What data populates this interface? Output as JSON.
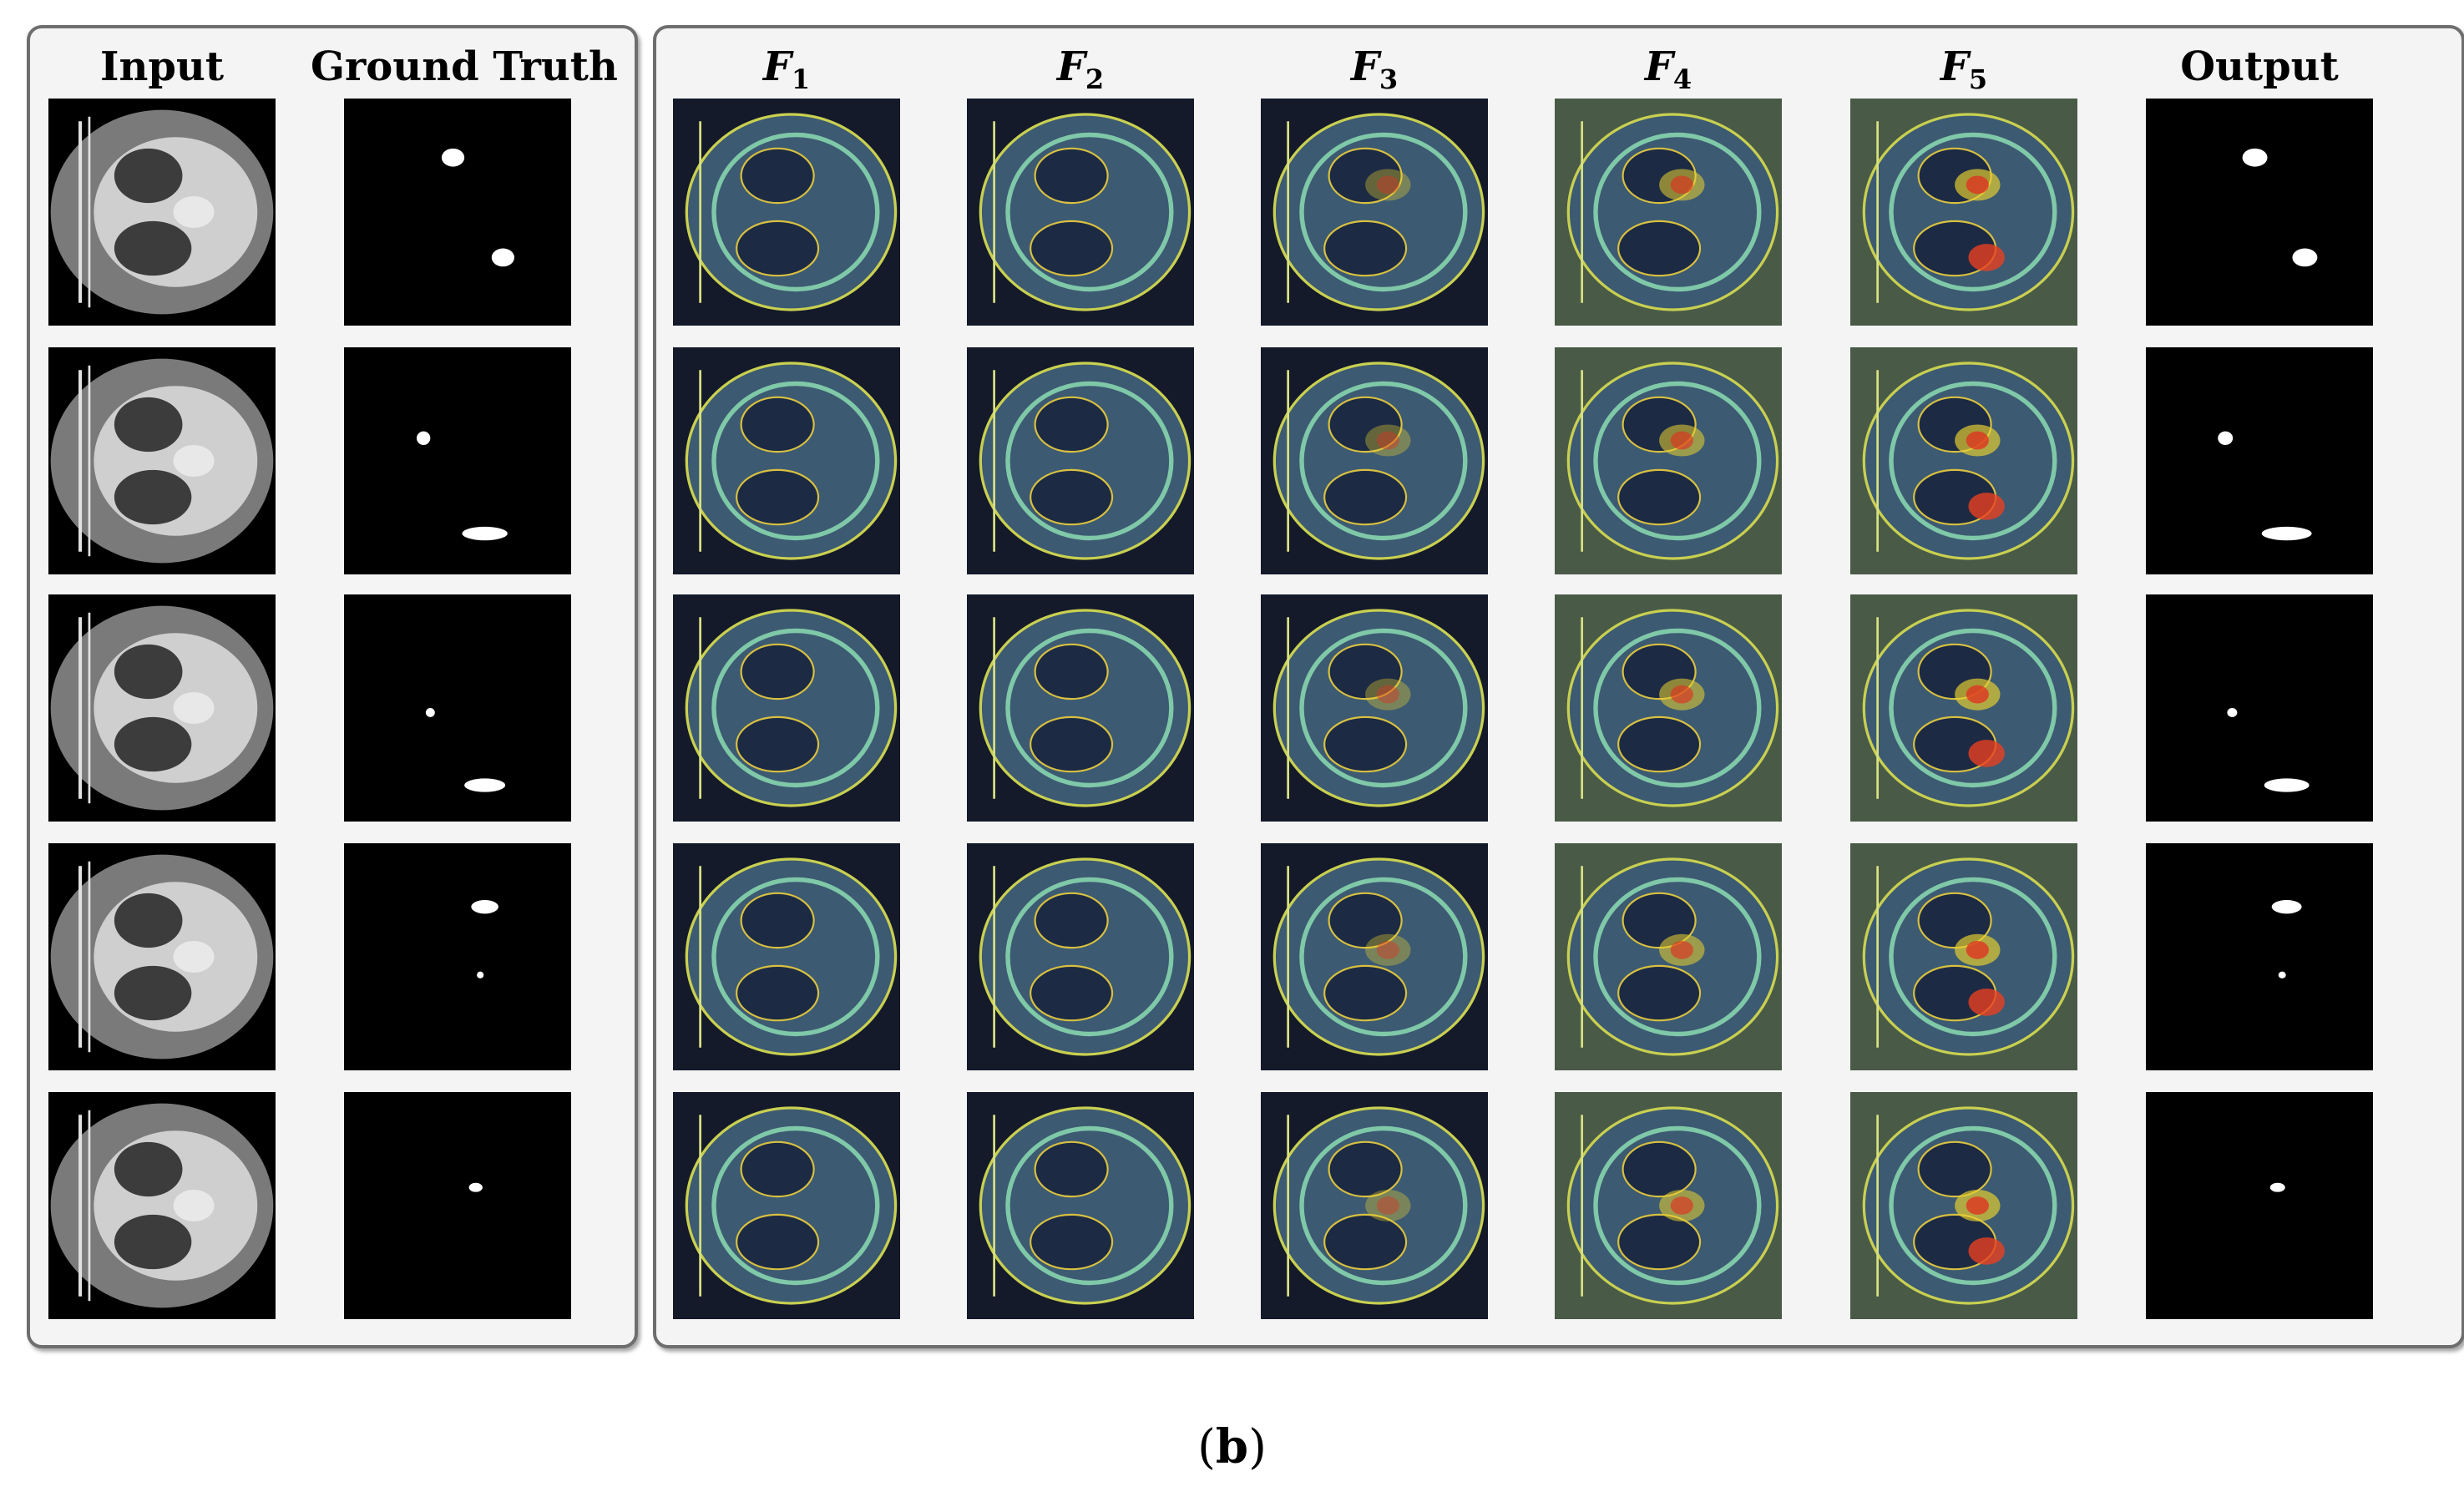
{
  "columns": [
    {
      "id": "input",
      "label": "Input",
      "kind": "ct"
    },
    {
      "id": "gt",
      "label": "Ground  Truth",
      "kind": "mask"
    },
    {
      "id": "f1",
      "label": "F",
      "sub": "1",
      "kind": "feat",
      "heat": 0.15
    },
    {
      "id": "f2",
      "label": "F",
      "sub": "2",
      "kind": "feat",
      "heat": 0.25
    },
    {
      "id": "f3",
      "label": "F",
      "sub": "3",
      "kind": "feat",
      "heat": 0.45
    },
    {
      "id": "f4",
      "label": "F",
      "sub": "4",
      "kind": "feat",
      "heat": 0.7
    },
    {
      "id": "f5",
      "label": "F",
      "sub": "5",
      "kind": "feat",
      "heat": 0.85
    },
    {
      "id": "output",
      "label": "Output",
      "kind": "mask"
    }
  ],
  "rows": 5,
  "caption": {
    "open": "(",
    "letter": "b",
    "close": ")"
  },
  "colors": {
    "panel_border": "#6e6e6e",
    "panel_bg": "#f4f4f4"
  }
}
